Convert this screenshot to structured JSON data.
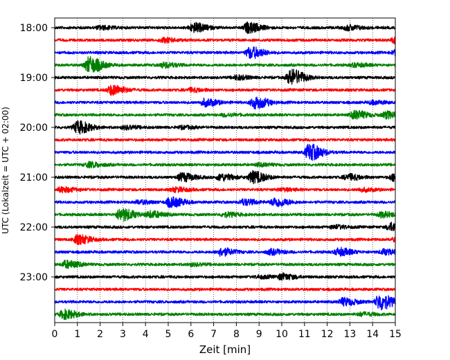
{
  "chart_data": {
    "type": "line",
    "xlabel": "Zeit  [min]",
    "ylabel": "UTC (Lokalzeit = UTC + 02:00)",
    "xlim": [
      0,
      15
    ],
    "x_ticks": [
      "0",
      "1",
      "2",
      "3",
      "4",
      "5",
      "6",
      "7",
      "8",
      "9",
      "10",
      "11",
      "12",
      "13",
      "14",
      "15"
    ],
    "y_tick_labels": [
      {
        "row": 0,
        "label": "18:00"
      },
      {
        "row": 4,
        "label": "19:00"
      },
      {
        "row": 8,
        "label": "20:00"
      },
      {
        "row": 12,
        "label": "21:00"
      },
      {
        "row": 16,
        "label": "22:00"
      },
      {
        "row": 20,
        "label": "23:00"
      }
    ],
    "grid": "vertical dotted",
    "row_interval_minutes": 15,
    "colors": [
      "#000000",
      "#ff0000",
      "#0000ff",
      "#008000"
    ],
    "series": [
      {
        "start": "18:00",
        "events": [
          [
            6.1,
            0.55
          ],
          [
            8.5,
            0.6
          ],
          [
            12.9,
            0.3
          ],
          [
            2.0,
            0.2
          ]
        ]
      },
      {
        "start": "18:15",
        "events": [
          [
            4.8,
            0.25
          ],
          [
            15.0,
            0.4
          ]
        ]
      },
      {
        "start": "18:30",
        "events": [
          [
            8.6,
            0.7
          ],
          [
            15.0,
            0.3
          ]
        ]
      },
      {
        "start": "18:45",
        "events": [
          [
            1.5,
            1.0
          ],
          [
            4.8,
            0.3
          ],
          [
            13.2,
            0.2
          ]
        ]
      },
      {
        "start": "19:00",
        "events": [
          [
            10.4,
            1.0
          ],
          [
            8.0,
            0.25
          ]
        ]
      },
      {
        "start": "19:15",
        "events": [
          [
            2.5,
            0.6
          ],
          [
            6.0,
            0.2
          ]
        ]
      },
      {
        "start": "19:30",
        "events": [
          [
            8.8,
            0.75
          ],
          [
            6.6,
            0.45
          ],
          [
            14.0,
            0.2
          ]
        ]
      },
      {
        "start": "19:45",
        "events": [
          [
            13.2,
            0.5
          ],
          [
            14.6,
            0.4
          ],
          [
            7.5,
            0.15
          ]
        ]
      },
      {
        "start": "20:00",
        "events": [
          [
            1.0,
            0.75
          ],
          [
            3.1,
            0.2
          ],
          [
            5.6,
            0.15
          ]
        ]
      },
      {
        "start": "20:15",
        "events": []
      },
      {
        "start": "20:30",
        "events": [
          [
            11.2,
            1.0
          ]
        ]
      },
      {
        "start": "20:45",
        "events": [
          [
            1.5,
            0.3
          ],
          [
            9.0,
            0.15
          ]
        ]
      },
      {
        "start": "21:00",
        "events": [
          [
            8.7,
            0.7
          ],
          [
            5.6,
            0.5
          ],
          [
            7.3,
            0.4
          ],
          [
            12.9,
            0.35
          ],
          [
            14.9,
            0.4
          ]
        ]
      },
      {
        "start": "21:15",
        "events": [
          [
            0.3,
            0.3
          ],
          [
            5.3,
            0.25
          ],
          [
            10.0,
            0.15
          ],
          [
            13.5,
            0.2
          ]
        ]
      },
      {
        "start": "21:30",
        "events": [
          [
            5.1,
            0.6
          ],
          [
            9.7,
            0.55
          ],
          [
            8.3,
            0.35
          ],
          [
            3.7,
            0.2
          ]
        ]
      },
      {
        "start": "21:45",
        "events": [
          [
            2.9,
            0.8
          ],
          [
            4.2,
            0.4
          ],
          [
            7.5,
            0.25
          ],
          [
            14.4,
            0.3
          ]
        ]
      },
      {
        "start": "22:00",
        "events": [
          [
            14.8,
            0.5
          ],
          [
            12.3,
            0.2
          ]
        ]
      },
      {
        "start": "22:15",
        "events": [
          [
            1.0,
            0.55
          ],
          [
            15.0,
            0.2
          ]
        ]
      },
      {
        "start": "22:30",
        "events": [
          [
            7.3,
            0.45
          ],
          [
            12.5,
            0.45
          ],
          [
            9.5,
            0.3
          ],
          [
            14.5,
            0.3
          ]
        ]
      },
      {
        "start": "22:45",
        "events": [
          [
            0.5,
            0.45
          ],
          [
            6.0,
            0.15
          ]
        ]
      },
      {
        "start": "23:00",
        "events": [
          [
            10.0,
            0.35
          ],
          [
            9.0,
            0.15
          ]
        ]
      },
      {
        "start": "23:15",
        "events": []
      },
      {
        "start": "23:30",
        "events": [
          [
            14.3,
            1.0
          ],
          [
            12.7,
            0.45
          ]
        ]
      },
      {
        "start": "23:45",
        "events": [
          [
            0.4,
            0.55
          ],
          [
            13.5,
            0.2
          ]
        ]
      }
    ]
  }
}
